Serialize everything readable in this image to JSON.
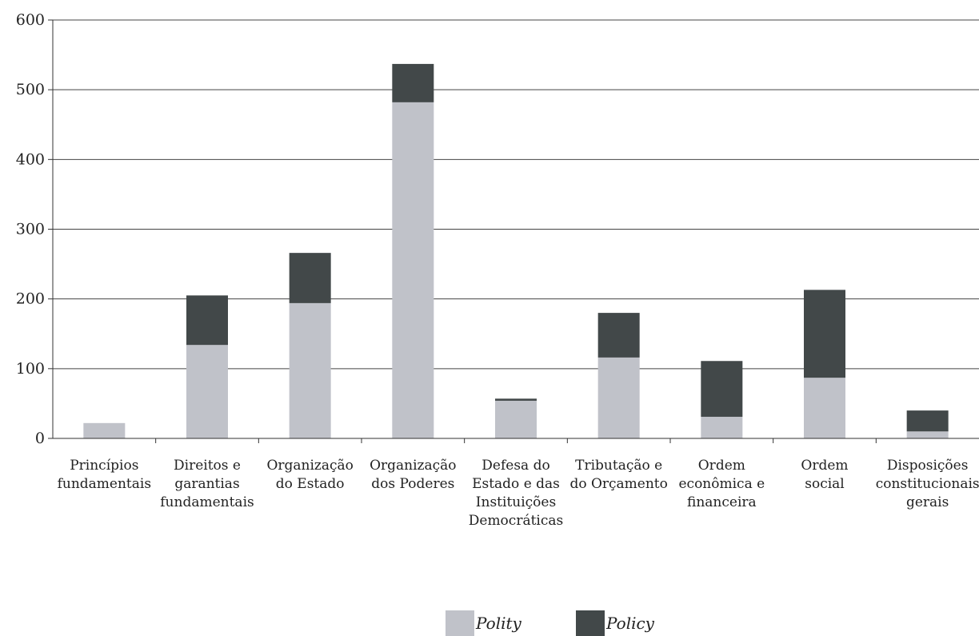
{
  "chart_data": {
    "type": "bar",
    "stacked": true,
    "categories": [
      [
        "Princípios",
        "fundamentais"
      ],
      [
        "Direitos e",
        "garantias",
        "fundamentais"
      ],
      [
        "Organização",
        "do Estado"
      ],
      [
        "Organização",
        "dos Poderes"
      ],
      [
        "Defesa do",
        "Estado e das",
        "Instituições",
        "Democráticas"
      ],
      [
        "Tributação e",
        "do Orçamento"
      ],
      [
        "Ordem",
        "econômica e",
        "financeira"
      ],
      [
        "Ordem",
        "social"
      ],
      [
        "Disposições",
        "constitucionais",
        "gerais"
      ]
    ],
    "series": [
      {
        "name": "Polity",
        "color": "#c0c2c9",
        "values": [
          22,
          134,
          194,
          482,
          54,
          116,
          31,
          87,
          10
        ]
      },
      {
        "name": "Policy",
        "color": "#424849",
        "values": [
          0,
          71,
          72,
          55,
          3,
          64,
          80,
          126,
          30
        ]
      }
    ],
    "ylim": [
      0,
      600
    ],
    "yticks": [
      0,
      100,
      200,
      300,
      400,
      500,
      600
    ],
    "grid": true,
    "legend_position": "bottom-center",
    "title": "",
    "xlabel": "",
    "ylabel": ""
  }
}
